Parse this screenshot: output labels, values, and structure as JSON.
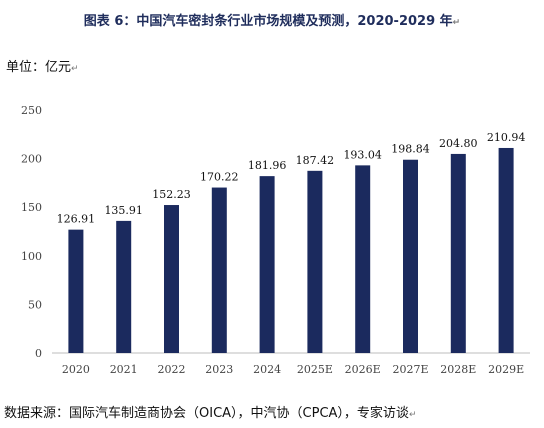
{
  "title": "图表 6：中国汽车密封条行业市场规模及预测，2020-2029 年",
  "unit": "单位：亿元",
  "source": "数据来源：国际汽车制造商协会（OICA），中汽协（CPCA），专家访谈",
  "colors": {
    "bar": "#1b2a5e",
    "axis": "#bdbdbd"
  },
  "chart_data": {
    "type": "bar",
    "title": "图表 6：中国汽车密封条行业市场规模及预测，2020-2029 年",
    "ylabel": "单位：亿元",
    "xlabel": "",
    "ylim": [
      0,
      250
    ],
    "yticks": [
      0,
      50,
      100,
      150,
      200,
      250
    ],
    "grid": false,
    "categories": [
      "2020",
      "2021",
      "2022",
      "2023",
      "2024",
      "2025E",
      "2026E",
      "2027E",
      "2028E",
      "2029E"
    ],
    "values": [
      126.91,
      135.91,
      152.23,
      170.22,
      181.96,
      187.42,
      193.04,
      198.84,
      204.8,
      210.94
    ],
    "value_labels": [
      "126.91",
      "135.91",
      "152.23",
      "170.22",
      "181.96",
      "187.42",
      "193.04",
      "198.84",
      "204.80",
      "210.94"
    ]
  }
}
